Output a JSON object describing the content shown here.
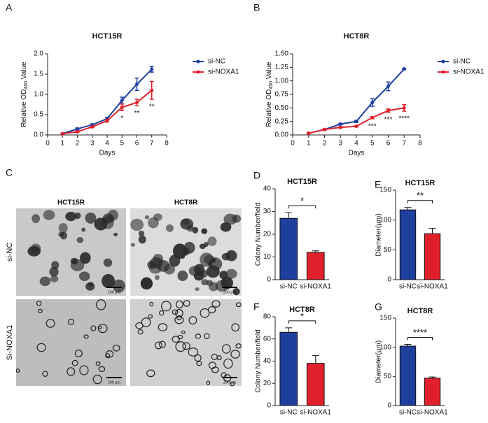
{
  "chart_data": [
    {
      "type": "line",
      "panel": "A",
      "title": "HCT15R",
      "xlabel": "Days",
      "ylabel": {
        "main": "Relative OD",
        "sub": "450",
        "tail": " Value"
      },
      "x": [
        1,
        2,
        3,
        4,
        5,
        6,
        7
      ],
      "series": [
        {
          "name": "si-NC",
          "color": "#1f3f9e",
          "values": [
            0.03,
            0.15,
            0.25,
            0.4,
            0.85,
            1.25,
            1.62
          ],
          "errors": [
            0,
            0.02,
            0.02,
            0.03,
            0.08,
            0.15,
            0.07
          ]
        },
        {
          "name": "si-NOXA1",
          "color": "#e0202a",
          "values": [
            0.03,
            0.08,
            0.2,
            0.35,
            0.68,
            0.8,
            1.1
          ],
          "errors": [
            0,
            0.02,
            0.02,
            0.03,
            0.08,
            0.08,
            0.22
          ]
        }
      ],
      "annotations": [
        {
          "x": 5,
          "text": "*"
        },
        {
          "x": 6,
          "text": "**"
        },
        {
          "x": 7,
          "text": "**"
        }
      ],
      "xlim": [
        0,
        8
      ],
      "xticks": [
        0,
        1,
        2,
        3,
        4,
        5,
        6,
        7,
        8
      ],
      "ylim": [
        0,
        2
      ],
      "yticks": [
        {
          "value": 0,
          "label": "0.0"
        },
        0.5,
        {
          "value": 1,
          "label": "1.0"
        },
        1.5,
        {
          "value": 2,
          "label": "2.0"
        }
      ]
    },
    {
      "type": "line",
      "panel": "B",
      "title": "HCT8R",
      "xlabel": "Days",
      "ylabel": {
        "main": "Relative OD",
        "sub": "450",
        "tail": " Value"
      },
      "x": [
        1,
        2,
        3,
        4,
        5,
        6,
        7
      ],
      "series": [
        {
          "name": "si-NC",
          "color": "#1f3f9e",
          "values": [
            0.03,
            0.1,
            0.2,
            0.25,
            0.6,
            0.9,
            1.22
          ],
          "errors": [
            0,
            0.01,
            0.01,
            0.02,
            0.07,
            0.08,
            0.01
          ]
        },
        {
          "name": "si-NOXA1",
          "color": "#e0202a",
          "values": [
            0.03,
            0.1,
            0.14,
            0.16,
            0.32,
            0.45,
            0.5
          ],
          "errors": [
            0,
            0.01,
            0.01,
            0.01,
            0.02,
            0.03,
            0.06
          ]
        }
      ],
      "annotations": [
        {
          "x": 5,
          "text": "***"
        },
        {
          "x": 6,
          "text": "***"
        },
        {
          "x": 7,
          "text": "****"
        }
      ],
      "xlim": [
        0,
        8
      ],
      "xticks": [
        0,
        1,
        2,
        3,
        4,
        5,
        6,
        7,
        8
      ],
      "ylim": [
        0,
        1.5
      ],
      "yticks": [
        {
          "value": 0,
          "label": "0.00"
        },
        {
          "value": 0.25,
          "label": "0.25"
        },
        {
          "value": 0.5,
          "label": "0.50"
        },
        {
          "value": 0.75,
          "label": "0.75"
        },
        {
          "value": 1,
          "label": "1.00"
        },
        {
          "value": 1.25,
          "label": "1.25"
        },
        {
          "value": 1.5,
          "label": "1.50"
        }
      ]
    },
    {
      "type": "bar",
      "panel": "D",
      "title": "HCT15R",
      "ylabel": "Colony Number/field",
      "categories": [
        "si-NC",
        "si-NOXA1"
      ],
      "values": [
        27,
        12
      ],
      "errors": [
        2.5,
        0.7
      ],
      "colors": [
        "#1f3f9e",
        "#e0202a"
      ],
      "significance": "*",
      "ylim": [
        0,
        40
      ],
      "yticks": [
        0,
        10,
        20,
        30,
        40
      ]
    },
    {
      "type": "bar",
      "panel": "E",
      "title": "HCT15R",
      "ylabel": "Diameter(μm)",
      "categories": [
        "si-NC",
        "si-NOXA1"
      ],
      "values": [
        117,
        77
      ],
      "errors": [
        4,
        9
      ],
      "colors": [
        "#1f3f9e",
        "#e0202a"
      ],
      "significance": "**",
      "ylim": [
        0,
        150
      ],
      "yticks": [
        0,
        50,
        100,
        150
      ]
    },
    {
      "type": "bar",
      "panel": "F",
      "title": "HCT8R",
      "ylabel": "Colony Number/field",
      "categories": [
        "si-NC",
        "si-NOXA1"
      ],
      "values": [
        66,
        38
      ],
      "errors": [
        4,
        7
      ],
      "colors": [
        "#1f3f9e",
        "#e0202a"
      ],
      "significance": "*",
      "ylim": [
        0,
        80
      ],
      "yticks": [
        0,
        20,
        40,
        60,
        80
      ]
    },
    {
      "type": "bar",
      "panel": "G",
      "title": "HCT8R",
      "ylabel": "Diameter(μm)",
      "categories": [
        "si-NC",
        "si-NOXA1"
      ],
      "values": [
        102,
        47
      ],
      "errors": [
        3,
        2
      ],
      "colors": [
        "#1f3f9e",
        "#e0202a"
      ],
      "significance": "****",
      "ylim": [
        0,
        150
      ],
      "yticks": [
        0,
        50,
        100,
        150
      ]
    }
  ],
  "panel_c": {
    "panel": "C",
    "columns": [
      "HCT15R",
      "HCT8R"
    ],
    "rows": [
      "si-NC",
      "Si-NOXA1"
    ],
    "scale_bars": [
      "200 μm",
      "200 μm",
      "200 μm",
      "200 μm"
    ]
  }
}
